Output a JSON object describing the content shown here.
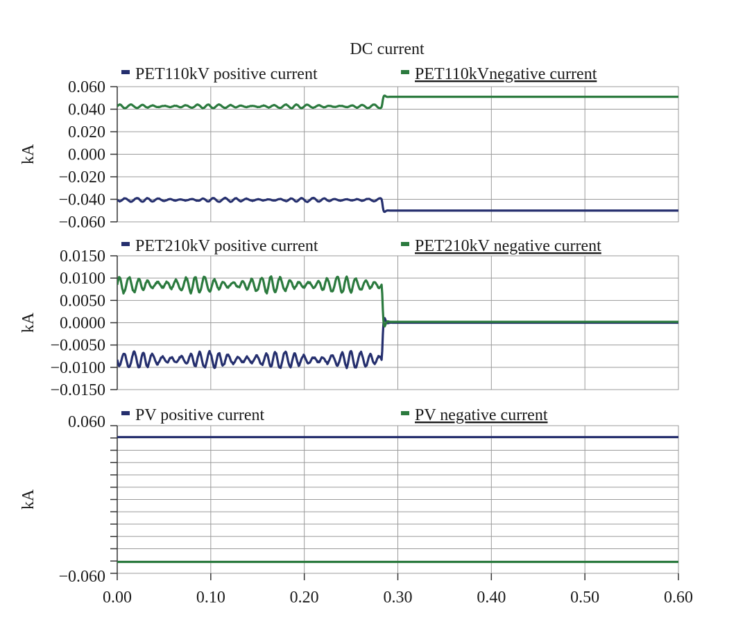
{
  "chart_data": {
    "type": "line",
    "title": "DC current",
    "x_ticks": [
      "0.00",
      "0.10",
      "0.20",
      "0.30",
      "0.40",
      "0.50",
      "0.60"
    ],
    "xlim": [
      0,
      0.6
    ],
    "colors": {
      "positive": "#252f6e",
      "negative": "#2b7a3e"
    },
    "panels": [
      {
        "ylabel": "kA",
        "ylim": [
          -0.06,
          0.06
        ],
        "y_ticks": [
          "0.060",
          "0.040",
          "0.020",
          "0.000",
          "−0.020",
          "−0.040",
          "−0.060"
        ],
        "grid_lines": 6,
        "series": [
          {
            "name": "PET110kV  positive current",
            "color": "#252f6e",
            "before_mean": -0.0405,
            "before_amp": 0.0017,
            "before_cycles": 24,
            "after_value": -0.05,
            "step_time": 0.283
          },
          {
            "name": "PET110kVnegative current",
            "color": "#2b7a3e",
            "before_mean": 0.0425,
            "before_amp": 0.0017,
            "before_cycles": 24,
            "after_value": 0.051,
            "step_time": 0.283
          }
        ]
      },
      {
        "ylabel": "kA",
        "ylim": [
          -0.015,
          0.015
        ],
        "y_ticks": [
          "0.0150",
          "0.0100",
          "0.0050",
          "0.0000",
          "−0.0050",
          "−0.0100",
          "−0.0150"
        ],
        "grid_lines": 6,
        "series": [
          {
            "name": "PET210kV positive current",
            "color": "#252f6e",
            "before_mean": -0.0083,
            "before_amp": 0.0018,
            "before_cycles": 28,
            "after_value": 0.0,
            "step_time": 0.283
          },
          {
            "name": "PET210kV negative current",
            "color": "#2b7a3e",
            "before_mean": 0.0085,
            "before_amp": 0.0018,
            "before_cycles": 28,
            "after_value": 0.0002,
            "step_time": 0.283
          }
        ]
      },
      {
        "ylabel": "kA",
        "ylim": [
          -0.0615,
          0.0615
        ],
        "y_ticks": [
          "0.060",
          "",
          "",
          "",
          "",
          "",
          "",
          "",
          "",
          "",
          "",
          "",
          "−0.060"
        ],
        "grid_lines": 12,
        "series": [
          {
            "name": "PV positive current",
            "color": "#252f6e",
            "constant": 0.052
          },
          {
            "name": "PV negative current",
            "color": "#2b7a3e",
            "constant": -0.052
          }
        ]
      }
    ]
  }
}
